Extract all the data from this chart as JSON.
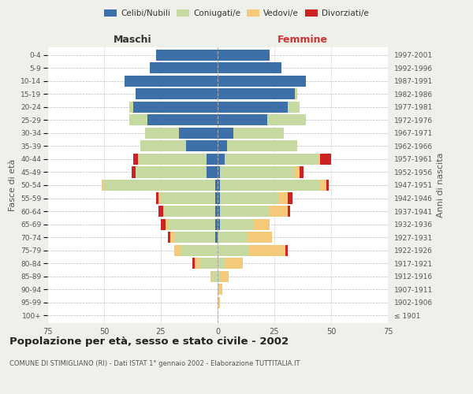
{
  "age_groups": [
    "100+",
    "95-99",
    "90-94",
    "85-89",
    "80-84",
    "75-79",
    "70-74",
    "65-69",
    "60-64",
    "55-59",
    "50-54",
    "45-49",
    "40-44",
    "35-39",
    "30-34",
    "25-29",
    "20-24",
    "15-19",
    "10-14",
    "5-9",
    "0-4"
  ],
  "birth_years": [
    "≤ 1901",
    "1902-1906",
    "1907-1911",
    "1912-1916",
    "1917-1921",
    "1922-1926",
    "1927-1931",
    "1932-1936",
    "1937-1941",
    "1942-1946",
    "1947-1951",
    "1952-1956",
    "1957-1961",
    "1962-1966",
    "1967-1971",
    "1972-1976",
    "1977-1981",
    "1982-1986",
    "1987-1991",
    "1992-1996",
    "1997-2001"
  ],
  "male": {
    "celibi": [
      0,
      0,
      0,
      0,
      0,
      0,
      1,
      1,
      1,
      1,
      1,
      5,
      5,
      14,
      17,
      31,
      37,
      36,
      41,
      30,
      27
    ],
    "coniugati": [
      0,
      0,
      0,
      2,
      8,
      16,
      18,
      21,
      23,
      24,
      49,
      31,
      30,
      20,
      15,
      8,
      2,
      0,
      0,
      0,
      0
    ],
    "vedovi": [
      0,
      0,
      0,
      1,
      2,
      3,
      2,
      1,
      0,
      1,
      1,
      0,
      0,
      0,
      0,
      0,
      0,
      0,
      0,
      0,
      0
    ],
    "divorziati": [
      0,
      0,
      0,
      0,
      1,
      0,
      1,
      2,
      2,
      1,
      0,
      2,
      2,
      0,
      0,
      0,
      0,
      0,
      0,
      0,
      0
    ]
  },
  "female": {
    "nubili": [
      0,
      0,
      0,
      0,
      0,
      0,
      0,
      1,
      1,
      1,
      1,
      1,
      3,
      4,
      7,
      22,
      31,
      34,
      39,
      28,
      23
    ],
    "coniugate": [
      0,
      0,
      0,
      1,
      3,
      14,
      13,
      15,
      22,
      26,
      44,
      33,
      41,
      31,
      22,
      17,
      5,
      1,
      0,
      0,
      0
    ],
    "vedove": [
      0,
      1,
      2,
      4,
      8,
      16,
      11,
      7,
      8,
      4,
      3,
      2,
      1,
      0,
      0,
      0,
      0,
      0,
      0,
      0,
      0
    ],
    "divorziate": [
      0,
      0,
      0,
      0,
      0,
      1,
      0,
      0,
      1,
      2,
      1,
      2,
      5,
      0,
      0,
      0,
      0,
      0,
      0,
      0,
      0
    ]
  },
  "colors": {
    "celibi": "#3d6fa8",
    "coniugati": "#c5d9a0",
    "vedovi": "#f5c97a",
    "divorziati": "#cc2222"
  },
  "xlim": 75,
  "title": "Popolazione per età, sesso e stato civile - 2002",
  "subtitle": "COMUNE DI STIMIGLIANO (RI) - Dati ISTAT 1° gennaio 2002 - Elaborazione TUTTITALIA.IT",
  "ylabel_left": "Fasce di età",
  "ylabel_right": "Anni di nascita",
  "xlabel_left": "Maschi",
  "xlabel_right": "Femmine",
  "background_color": "#f0f0eb",
  "plot_background": "#ffffff"
}
